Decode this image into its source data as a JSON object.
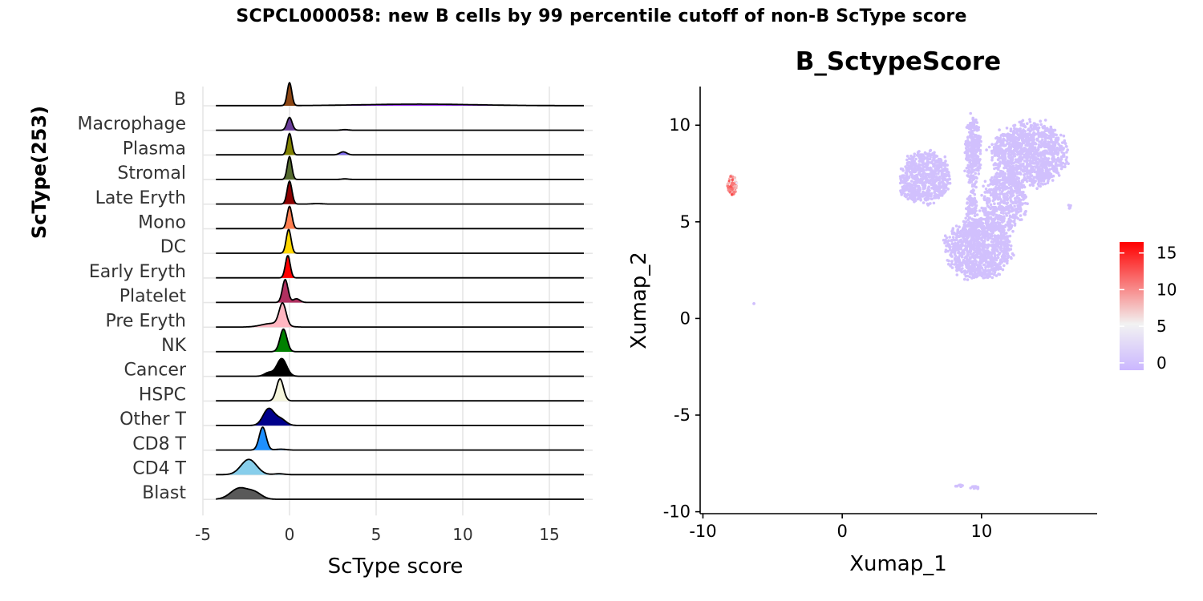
{
  "title": "SCPCL000058: new B cells by 99 percentile cutoff of non-B ScType score",
  "chart_data": [
    {
      "type": "ridgeline",
      "title": "",
      "xlabel": "ScType score",
      "ylabel": "ScType\u0003(253)",
      "xlim": [
        -5,
        17.5
      ],
      "x_ticks": [
        -5,
        0,
        5,
        10,
        15
      ],
      "x_tick_labels": [
        "-5",
        "0",
        "5",
        "10",
        "15"
      ],
      "grid": "on",
      "series": [
        {
          "name": "B",
          "color": "#8B4513",
          "tail_color": "#9B30FF",
          "peaks": [
            {
              "x": 0.0,
              "h": 0.75,
              "w": 0.13
            },
            {
              "x": 7.5,
              "h": 0.05,
              "w": 3.2
            }
          ]
        },
        {
          "name": "Macrophage",
          "color": "#6A3D9A",
          "peaks": [
            {
              "x": 0.0,
              "h": 0.42,
              "w": 0.15
            },
            {
              "x": 3.2,
              "h": 0.02,
              "w": 0.2
            }
          ]
        },
        {
          "name": "Plasma",
          "color": "#808000",
          "tail_color": "#7B68EE",
          "peaks": [
            {
              "x": 0.0,
              "h": 0.7,
              "w": 0.13
            },
            {
              "x": 3.1,
              "h": 0.1,
              "w": 0.2
            }
          ]
        },
        {
          "name": "Stromal",
          "color": "#556B2F",
          "peaks": [
            {
              "x": 0.0,
              "h": 0.75,
              "w": 0.13
            },
            {
              "x": 3.2,
              "h": 0.02,
              "w": 0.2
            }
          ]
        },
        {
          "name": "Late Eryth",
          "color": "#8B0000",
          "peaks": [
            {
              "x": 0.0,
              "h": 0.75,
              "w": 0.14
            },
            {
              "x": 1.6,
              "h": 0.015,
              "w": 0.3
            }
          ]
        },
        {
          "name": "Mono",
          "color": "#FF7F50",
          "peaks": [
            {
              "x": 0.0,
              "h": 0.73,
              "w": 0.14
            }
          ]
        },
        {
          "name": "DC",
          "color": "#FFD700",
          "peaks": [
            {
              "x": -0.05,
              "h": 0.78,
              "w": 0.14
            }
          ]
        },
        {
          "name": "Early Eryth",
          "color": "#FF0000",
          "peaks": [
            {
              "x": -0.1,
              "h": 0.73,
              "w": 0.14
            }
          ]
        },
        {
          "name": "Platelet",
          "color": "#B03060",
          "peaks": [
            {
              "x": -0.25,
              "h": 0.75,
              "w": 0.16
            },
            {
              "x": 0.4,
              "h": 0.12,
              "w": 0.2
            }
          ]
        },
        {
          "name": "Pre Eryth",
          "color": "#FFB6C1",
          "peaks": [
            {
              "x": -0.4,
              "h": 0.72,
              "w": 0.2
            },
            {
              "x": -1.0,
              "h": 0.12,
              "w": 0.6
            }
          ]
        },
        {
          "name": "NK",
          "color": "#008000",
          "peaks": [
            {
              "x": -0.35,
              "h": 0.74,
              "w": 0.2
            }
          ]
        },
        {
          "name": "Cancer",
          "color": "#000000",
          "peaks": [
            {
              "x": -0.45,
              "h": 0.58,
              "w": 0.28
            },
            {
              "x": -1.2,
              "h": 0.12,
              "w": 0.25
            }
          ]
        },
        {
          "name": "HSPC",
          "color": "#F5F5DC",
          "peaks": [
            {
              "x": -0.55,
              "h": 0.72,
              "w": 0.2
            }
          ]
        },
        {
          "name": "Other T",
          "color": "#00008B",
          "peaks": [
            {
              "x": -1.2,
              "h": 0.55,
              "w": 0.32
            },
            {
              "x": -0.5,
              "h": 0.2,
              "w": 0.3
            }
          ]
        },
        {
          "name": "CD8 T",
          "color": "#1E90FF",
          "peaks": [
            {
              "x": -1.55,
              "h": 0.75,
              "w": 0.2
            },
            {
              "x": -0.5,
              "h": 0.03,
              "w": 0.3
            }
          ]
        },
        {
          "name": "CD4 T",
          "color": "#87CEEB",
          "peaks": [
            {
              "x": -2.35,
              "h": 0.5,
              "w": 0.45
            },
            {
              "x": -0.6,
              "h": 0.03,
              "w": 0.3
            }
          ]
        },
        {
          "name": "Blast",
          "color": "#595959",
          "peaks": [
            {
              "x": -2.9,
              "h": 0.36,
              "w": 0.5
            },
            {
              "x": -2.0,
              "h": 0.2,
              "w": 0.4
            }
          ]
        }
      ]
    },
    {
      "type": "scatter",
      "title": "B_SctypeScore",
      "xlabel": "Xumap_1",
      "ylabel": "Xumap_2",
      "xlim": [
        -10.2,
        18.3
      ],
      "ylim": [
        -10.1,
        12.0
      ],
      "x_ticks": [
        -10,
        0,
        10
      ],
      "x_tick_labels": [
        "-10",
        "0",
        "10"
      ],
      "y_ticks": [
        -10,
        -5,
        0,
        5,
        10
      ],
      "y_tick_labels": [
        "-10",
        "-5",
        "0",
        "5",
        "10"
      ],
      "grid": "off",
      "legend": {
        "position": "right",
        "ticks": [
          0,
          5,
          10,
          15
        ],
        "tick_labels": [
          "0",
          "5",
          "10",
          "15"
        ],
        "range": [
          -1,
          16.5
        ],
        "colors": [
          "#CBB7FF",
          "#F2F2F2",
          "#FF0000"
        ]
      },
      "clusters": [
        {
          "cx": 6.0,
          "cy": 7.3,
          "rx": 1.7,
          "ry": 1.3,
          "n": 650,
          "score": 0
        },
        {
          "cx": 4.9,
          "cy": 6.6,
          "rx": 0.7,
          "ry": 0.4,
          "n": 60,
          "score": 0
        },
        {
          "cx": 9.4,
          "cy": 8.6,
          "rx": 0.55,
          "ry": 1.8,
          "n": 300,
          "score": 0
        },
        {
          "cx": 9.3,
          "cy": 5.2,
          "rx": 0.4,
          "ry": 1.6,
          "n": 150,
          "score": 0
        },
        {
          "cx": 13.4,
          "cy": 8.5,
          "rx": 2.6,
          "ry": 1.6,
          "n": 1200,
          "score": 0
        },
        {
          "cx": 11.6,
          "cy": 6.0,
          "rx": 1.6,
          "ry": 1.5,
          "n": 500,
          "score": 0
        },
        {
          "cx": 9.8,
          "cy": 3.6,
          "rx": 2.3,
          "ry": 1.5,
          "n": 1000,
          "score": 0
        },
        {
          "cx": 16.3,
          "cy": 5.8,
          "rx": 0.12,
          "ry": 0.12,
          "n": 6,
          "score": 0
        },
        {
          "cx": -6.3,
          "cy": 0.75,
          "rx": 0.06,
          "ry": 0.06,
          "n": 2,
          "score": 0
        },
        {
          "cx": 8.4,
          "cy": -8.65,
          "rx": 0.25,
          "ry": 0.07,
          "n": 10,
          "score": 0
        },
        {
          "cx": 9.5,
          "cy": -8.75,
          "rx": 0.35,
          "ry": 0.07,
          "n": 14,
          "score": 0
        },
        {
          "cx": -7.9,
          "cy": 6.85,
          "rx": 0.32,
          "ry": 0.5,
          "n": 70,
          "score": 10
        }
      ]
    }
  ]
}
